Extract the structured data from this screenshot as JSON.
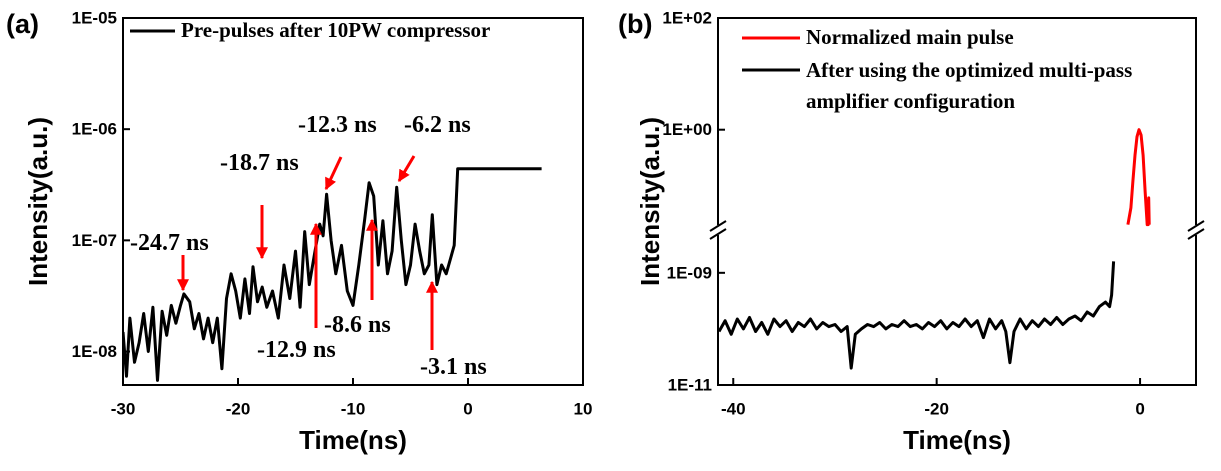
{
  "chart_data": [
    {
      "type": "line",
      "label": "(a)",
      "xlabel": "Time(ns)",
      "ylabel": "Intensity(a.u.)",
      "xlim": [
        -30,
        10
      ],
      "xticks": [
        -30,
        -20,
        -10,
        0,
        10
      ],
      "yscale": "log",
      "ylim": [
        5e-09,
        1e-05
      ],
      "yticks": [
        {
          "value": 1e-08,
          "label": "1E-08"
        },
        {
          "value": 1e-07,
          "label": "1E-07"
        },
        {
          "value": 1e-06,
          "label": "1E-06"
        },
        {
          "value": 1e-05,
          "label": "1E-05"
        }
      ],
      "legend": "upper left",
      "series": [
        {
          "name": "Pre-pulses after 10PW compressor",
          "color": "#000000",
          "x": [
            -30,
            -29.7,
            -29.4,
            -29,
            -28.6,
            -28.2,
            -27.8,
            -27.4,
            -27,
            -26.6,
            -26.2,
            -25.8,
            -25.4,
            -25,
            -24.7,
            -24.2,
            -23.8,
            -23.4,
            -23,
            -22.6,
            -22.2,
            -21.8,
            -21.4,
            -21,
            -20.6,
            -20.2,
            -19.8,
            -19.4,
            -19,
            -18.7,
            -18.3,
            -17.9,
            -17.5,
            -17,
            -16.5,
            -16,
            -15.5,
            -15,
            -14.6,
            -14.2,
            -13.8,
            -13.4,
            -12.9,
            -12.6,
            -12.3,
            -11.9,
            -11.5,
            -11,
            -10.5,
            -10,
            -9.5,
            -9,
            -8.6,
            -8.2,
            -7.8,
            -7.4,
            -7,
            -6.6,
            -6.2,
            -5.8,
            -5.4,
            -5,
            -4.6,
            -4.2,
            -3.8,
            -3.4,
            -3.1,
            -2.7,
            -2.3,
            -1.9,
            -1.5,
            -1.2,
            -0.9,
            -0.6,
            6.4
          ],
          "values": [
            1.5e-08,
            6e-09,
            2e-08,
            8e-09,
            1.2e-08,
            2.2e-08,
            1e-08,
            2.5e-08,
            5.5e-09,
            2.3e-08,
            1.4e-08,
            2.6e-08,
            1.8e-08,
            2.6e-08,
            3.3e-08,
            2.8e-08,
            1.6e-08,
            2.2e-08,
            1.3e-08,
            2e-08,
            1.2e-08,
            2e-08,
            7e-09,
            3e-08,
            5e-08,
            3.5e-08,
            2e-08,
            4.5e-08,
            2.2e-08,
            5.8e-08,
            2.8e-08,
            3.8e-08,
            2.5e-08,
            3.5e-08,
            2e-08,
            6e-08,
            3e-08,
            8e-08,
            2.5e-08,
            1.2e-07,
            4e-08,
            7e-08,
            1.4e-07,
            1.1e-07,
            2.6e-07,
            1e-07,
            5e-08,
            9e-08,
            3.5e-08,
            2.6e-08,
            6e-08,
            1.5e-07,
            3.3e-07,
            2.5e-07,
            6e-08,
            1.5e-07,
            5e-08,
            8e-08,
            3e-07,
            1e-07,
            4e-08,
            6e-08,
            1.4e-07,
            8e-08,
            5e-08,
            6e-08,
            1.7e-07,
            4e-08,
            6e-08,
            5e-08,
            7e-08,
            9e-08,
            4.4e-07,
            4.4e-07,
            4.4e-07
          ]
        }
      ],
      "annotations": [
        "-24.7 ns",
        "-18.7 ns",
        "-12.3 ns",
        "-6.2 ns",
        "-12.9 ns",
        "-8.6 ns",
        "-3.1 ns"
      ]
    },
    {
      "type": "line",
      "label": "(b)",
      "xlabel": "Time(ns)",
      "ylabel": "Intensity(a.u.)",
      "xlim": [
        -41.5,
        5.5
      ],
      "xticks": [
        -40,
        -20,
        0
      ],
      "yscale": "log",
      "ylim": [
        1e-11,
        100
      ],
      "ybreak": [
        5.8e-09,
        0.016
      ],
      "yticks": [
        {
          "value": 1e-11,
          "label": "1E-11"
        },
        {
          "value": 1e-09,
          "label": "1E-09"
        },
        {
          "value": 1,
          "label": "1E+00"
        },
        {
          "value": 100,
          "label": "1E+02"
        }
      ],
      "legend": "upper left",
      "series": [
        {
          "name": "Normalized main pulse",
          "color": "#ff0000",
          "x": [
            -1.2,
            -0.9,
            -0.7,
            -0.5,
            -0.3,
            -0.1,
            0.1,
            0.3,
            0.5,
            0.7,
            0.8,
            0.85,
            0.9
          ],
          "values": [
            0.02,
            0.04,
            0.12,
            0.35,
            0.75,
            1,
            0.8,
            0.35,
            0.08,
            0.02,
            0.02,
            0.06,
            0.02
          ]
        },
        {
          "name": "After using the optimized multi-pass amplifier configuration",
          "color": "#000000",
          "x": [
            -41.4,
            -40.8,
            -40.2,
            -39.6,
            -39,
            -38.4,
            -37.8,
            -37.2,
            -36.6,
            -36,
            -35.4,
            -34.8,
            -34.2,
            -33.6,
            -33,
            -32.4,
            -31.8,
            -31.2,
            -30.6,
            -30,
            -29.4,
            -28.8,
            -28.4,
            -28,
            -27.4,
            -26.8,
            -26.2,
            -25.6,
            -25,
            -24.4,
            -23.8,
            -23.2,
            -22.6,
            -22,
            -21.4,
            -20.8,
            -20.2,
            -19.6,
            -19,
            -18.4,
            -17.8,
            -17.2,
            -16.6,
            -16,
            -15.4,
            -14.8,
            -14.2,
            -13.6,
            -13.2,
            -12.8,
            -12.4,
            -11.8,
            -11.2,
            -10.6,
            -10,
            -9.4,
            -8.8,
            -8.2,
            -7.6,
            -7,
            -6.4,
            -5.8,
            -5.2,
            -4.6,
            -4,
            -3.4,
            -3,
            -2.8,
            -2.6
          ],
          "values": [
            9e-11,
            1.4e-10,
            8e-11,
            1.5e-10,
            1e-10,
            1.6e-10,
            9e-11,
            1.3e-10,
            8e-11,
            1.5e-10,
            1.1e-10,
            1.4e-10,
            9e-11,
            1.3e-10,
            1.1e-10,
            1.5e-10,
            1e-10,
            1.3e-10,
            1.1e-10,
            1.2e-10,
            9e-11,
            1.1e-10,
            2e-11,
            8e-11,
            1e-10,
            1.2e-10,
            1.1e-10,
            1.3e-10,
            1e-10,
            1.2e-10,
            1.1e-10,
            1.4e-10,
            1.1e-10,
            1.2e-10,
            1e-10,
            1.3e-10,
            1.1e-10,
            1.4e-10,
            1e-10,
            1.3e-10,
            1.1e-10,
            1.5e-10,
            1.1e-10,
            1.4e-10,
            7e-11,
            1.5e-10,
            1e-10,
            1.4e-10,
            9e-11,
            2.5e-11,
            9e-11,
            1.5e-10,
            1e-10,
            1.4e-10,
            1.1e-10,
            1.5e-10,
            1.2e-10,
            1.6e-10,
            1.2e-10,
            1.5e-10,
            1.7e-10,
            1.4e-10,
            2e-10,
            1.7e-10,
            2.5e-10,
            3e-10,
            2.5e-10,
            4e-10,
            1.6e-09
          ]
        }
      ]
    }
  ]
}
